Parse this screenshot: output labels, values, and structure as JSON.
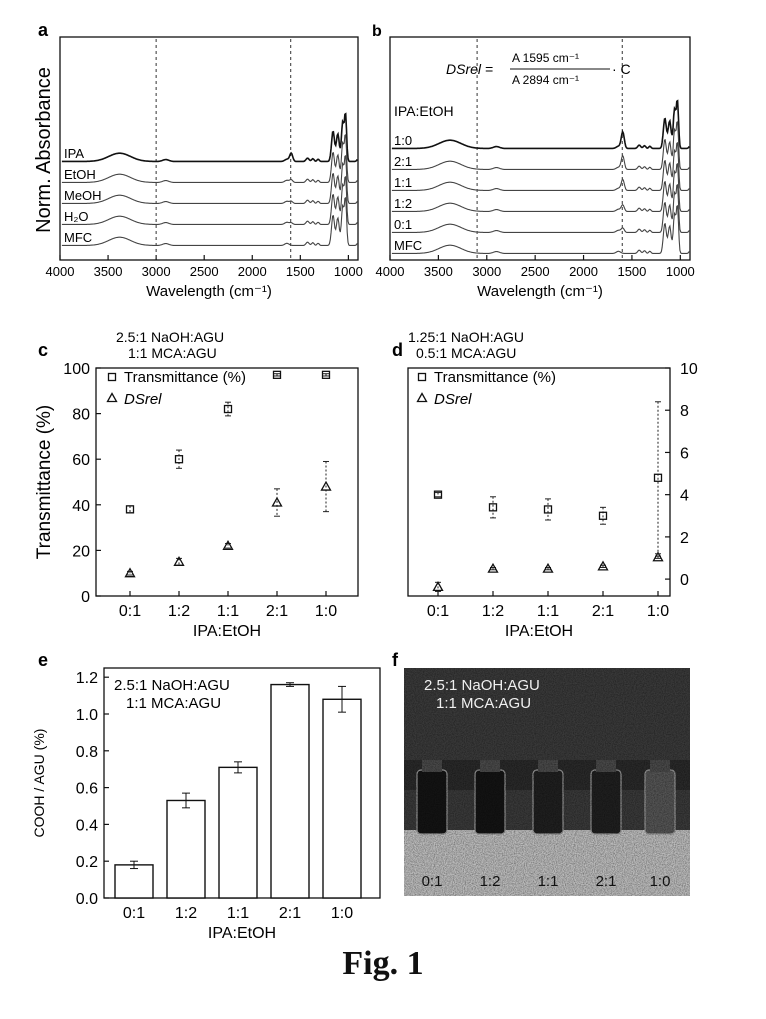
{
  "figure": {
    "caption": "Fig. 1"
  },
  "chart_data": [
    {
      "panel": "a",
      "type": "line",
      "ylabel": "Norm. Absorbance",
      "xlabel": "Wavelength (cm⁻¹)",
      "xlim": [
        4000,
        900
      ],
      "x_reversed": true,
      "xticks": [
        "4000",
        "3500",
        "3000",
        "2500",
        "2000",
        "1500",
        "1000"
      ],
      "reference_lines_x": [
        3000,
        1600
      ],
      "series": [
        {
          "name": "IPA",
          "offset": 4
        },
        {
          "name": "EtOH",
          "offset": 3
        },
        {
          "name": "MeOH",
          "offset": 2
        },
        {
          "name": "H₂O",
          "offset": 1
        },
        {
          "name": "MFC",
          "offset": 0
        }
      ]
    },
    {
      "panel": "b",
      "type": "line",
      "xlabel": "Wavelength (cm⁻¹)",
      "xlim": [
        4000,
        900
      ],
      "x_reversed": true,
      "xticks": [
        "4000",
        "3500",
        "3000",
        "2500",
        "2000",
        "1500",
        "1000"
      ],
      "reference_lines_x": [
        3100,
        1600
      ],
      "equation": {
        "lhs": "DSrel =",
        "numerator": "A 1595 cm⁻¹",
        "denominator": "A 2894 cm⁻¹",
        "suffix": "· C"
      },
      "legend_title": "IPA:EtOH",
      "series": [
        {
          "name": "1:0",
          "offset": 5
        },
        {
          "name": "2:1",
          "offset": 4
        },
        {
          "name": "1:1",
          "offset": 3
        },
        {
          "name": "1:2",
          "offset": 2
        },
        {
          "name": "0:1",
          "offset": 1
        },
        {
          "name": "MFC",
          "offset": 0
        }
      ]
    },
    {
      "panel": "c",
      "type": "scatter",
      "conditions": [
        "2.5:1  NaOH:AGU",
        "1:1  MCA:AGU"
      ],
      "ylabel": "Transmittance (%)",
      "xlabel": "IPA:EtOH",
      "categories": [
        "0:1",
        "1:2",
        "1:1",
        "2:1",
        "1:0"
      ],
      "ylim": [
        0,
        100
      ],
      "yticks": [
        "0",
        "20",
        "40",
        "60",
        "80",
        "100"
      ],
      "legend": [
        "Transmittance (%)",
        "DSrel"
      ],
      "series": [
        {
          "name": "Transmittance (%)",
          "values": [
            38,
            60,
            82,
            97,
            97
          ],
          "errors": [
            1.5,
            4,
            3,
            0.5,
            0.5
          ]
        },
        {
          "name": "DSrel",
          "values": [
            10,
            15,
            22,
            41,
            48
          ],
          "errors": [
            0.8,
            1.5,
            1,
            6,
            11
          ]
        }
      ]
    },
    {
      "panel": "d",
      "type": "scatter",
      "conditions": [
        "1.25:1  NaOH:AGU",
        "0.5:1  MCA:AGU"
      ],
      "xlabel": "IPA:EtOH",
      "categories": [
        "0:1",
        "1:2",
        "1:1",
        "2:1",
        "1:0"
      ],
      "ylim": [
        0,
        100
      ],
      "y2lim": [
        -0.8,
        10
      ],
      "y2ticks": [
        "0",
        "2",
        "4",
        "6",
        "8",
        "10"
      ],
      "legend": [
        "Transmittance (%)",
        "DSrel"
      ],
      "series": [
        {
          "name": "Transmittance (%)",
          "values": [
            4,
            12,
            12,
            13,
            17
          ],
          "errors": [
            2,
            0.5,
            0.5,
            0.5,
            0.5
          ]
        },
        {
          "name": "DSrel",
          "values": [
            4.0,
            3.4,
            3.3,
            3.0,
            4.8
          ],
          "errors": [
            0.1,
            0.5,
            0.5,
            0.4,
            3.6
          ]
        }
      ]
    },
    {
      "panel": "e",
      "type": "bar",
      "conditions": [
        "2.5:1  NaOH:AGU",
        "1:1  MCA:AGU"
      ],
      "ylabel": "COOH / AGU (%)",
      "xlabel": "IPA:EtOH",
      "categories": [
        "0:1",
        "1:2",
        "1:1",
        "2:1",
        "1:0"
      ],
      "values": [
        0.18,
        0.53,
        0.71,
        1.16,
        1.08
      ],
      "errors": [
        0.02,
        0.04,
        0.03,
        0.01,
        0.07
      ],
      "ylim": [
        0,
        1.25
      ],
      "yticks": [
        "0.0",
        "0.2",
        "0.4",
        "0.6",
        "0.8",
        "1.0",
        "1.2"
      ]
    }
  ],
  "photo_panel": {
    "panel": "f",
    "labels": [
      "2.5:1  NaOH:AGU",
      "1:1  MCA:AGU"
    ],
    "vial_labels": [
      "0:1",
      "1:2",
      "1:1",
      "2:1",
      "1:0"
    ]
  }
}
